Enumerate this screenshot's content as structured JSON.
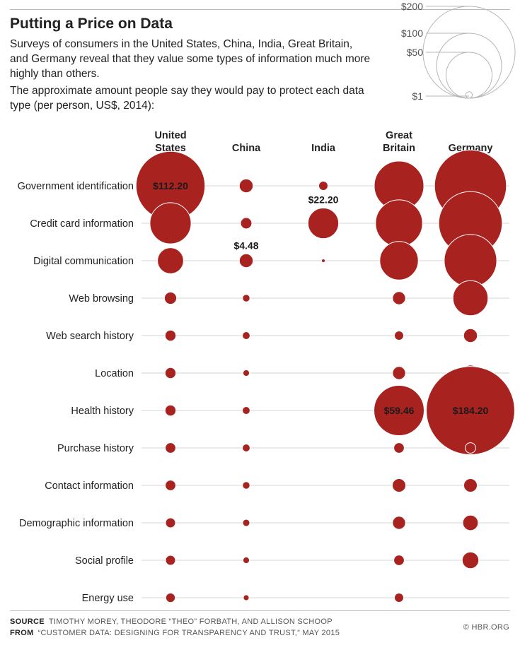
{
  "header": {
    "title": "Putting a Price on Data",
    "subtitle": "Surveys of consumers in the United States, China, India, Great Britain, and Germany reveal that they value some types of information much more highly than others.",
    "description": "The approximate amount people say they would pay to protect each data type (per person, US$, 2014):"
  },
  "chart_data": {
    "type": "bubble",
    "categories": [
      "Government identification",
      "Credit card information",
      "Digital communication",
      "Web browsing",
      "Web search history",
      "Location",
      "Health history",
      "Purchase history",
      "Contact information",
      "Demographic information",
      "Social profile",
      "Energy use"
    ],
    "series": [
      {
        "name": "United States",
        "label_lines": [
          "United",
          "States"
        ],
        "values": [
          112.2,
          40,
          16,
          3.5,
          2.8,
          2.8,
          2.8,
          2.6,
          2.6,
          2.3,
          2.3,
          2.1
        ]
      },
      {
        "name": "China",
        "label_lines": [
          "China"
        ],
        "values": [
          4.5,
          3.0,
          4.48,
          1.3,
          1.4,
          1.0,
          1.4,
          1.4,
          1.3,
          1.2,
          1.0,
          0.8
        ]
      },
      {
        "name": "India",
        "label_lines": [
          "India"
        ],
        "values": [
          2.0,
          22.2,
          0.3,
          null,
          null,
          null,
          null,
          null,
          null,
          null,
          null,
          null
        ]
      },
      {
        "name": "Great Britain",
        "label_lines": [
          "Great",
          "Britain"
        ],
        "values": [
          58,
          52,
          35,
          4,
          2.0,
          4,
          59.46,
          2.6,
          4.3,
          4,
          2.6,
          2.0
        ]
      },
      {
        "name": "Germany",
        "label_lines": [
          "Germany"
        ],
        "values": [
          122,
          95,
          65,
          29,
          4.5,
          6,
          184.2,
          2.6,
          4.3,
          5.6,
          6.5,
          null
        ]
      }
    ],
    "data_labels": [
      {
        "series": "United States",
        "category": "Government identification",
        "text": "$112.20",
        "position": "inside"
      },
      {
        "series": "China",
        "category": "Digital communication",
        "text": "$4.48",
        "position": "above"
      },
      {
        "series": "India",
        "category": "Credit card information",
        "text": "$22.20",
        "position": "above"
      },
      {
        "series": "Great Britain",
        "category": "Health history",
        "text": "$59.46",
        "position": "inside"
      },
      {
        "series": "Germany",
        "category": "Health history",
        "text": "$184.20",
        "position": "inside"
      }
    ],
    "size_legend": {
      "placement": "top-right",
      "items": [
        {
          "label": "$200",
          "value": 200
        },
        {
          "label": "$100",
          "value": 100
        },
        {
          "label": "$50",
          "value": 50
        },
        {
          "label": "$1",
          "value": 1
        }
      ]
    },
    "grid": "horizontal-rows"
  },
  "colors": {
    "bubble_fill": "#a8221f",
    "bubble_stroke": "#ffffff",
    "gridline": "#d6d6d6",
    "legend_stroke": "#b5b5b5"
  },
  "footer": {
    "source_label": "SOURCE",
    "source_text": "TIMOTHY MOREY, THEODORE “THEO” FORBATH, AND ALLISON SCHOOP",
    "from_label": "FROM",
    "from_text": "“CUSTOMER DATA: DESIGNING FOR TRANSPARENCY AND TRUST,” MAY 2015",
    "copyright": "© HBR.ORG"
  }
}
